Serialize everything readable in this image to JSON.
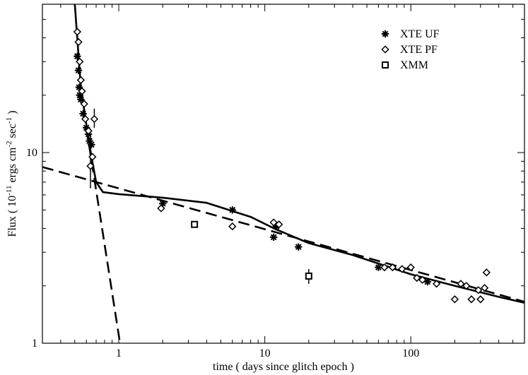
{
  "chart_data": {
    "type": "scatter",
    "xscale": "log",
    "yscale": "log",
    "xlim": [
      0.3,
      600
    ],
    "ylim": [
      1,
      60
    ],
    "xlabel": "time ( days since glitch epoch )",
    "ylabel_parts": {
      "prefix": "Flux ( 10",
      "exp1": "-11",
      "mid1": " ergs cm",
      "exp2": "-2",
      "mid2": " sec",
      "exp3": "-1",
      "suffix": " )"
    },
    "x_ticks": [
      {
        "value": 1,
        "label": "1"
      },
      {
        "value": 10,
        "label": "10"
      },
      {
        "value": 100,
        "label": "100"
      }
    ],
    "y_ticks": [
      {
        "value": 1,
        "label": "1"
      },
      {
        "value": 10,
        "label": "10"
      }
    ],
    "legend": {
      "placement": "top-right",
      "entries": [
        {
          "name": "XTE UF",
          "marker": "asterisk"
        },
        {
          "name": "XTE PF",
          "marker": "diamond"
        },
        {
          "name": "XMM",
          "marker": "square"
        }
      ]
    },
    "series": [
      {
        "name": "XTE UF",
        "marker": "asterisk",
        "points": [
          {
            "x": 0.52,
            "y": 32
          },
          {
            "x": 0.53,
            "y": 27
          },
          {
            "x": 0.535,
            "y": 22
          },
          {
            "x": 0.54,
            "y": 20
          },
          {
            "x": 0.55,
            "y": 19
          },
          {
            "x": 0.57,
            "y": 16
          },
          {
            "x": 0.6,
            "y": 13.5
          },
          {
            "x": 0.62,
            "y": 12.5
          },
          {
            "x": 0.63,
            "y": 11.5
          },
          {
            "x": 0.65,
            "y": 11
          },
          {
            "x": 2.0,
            "y": 5.4
          },
          {
            "x": 6.0,
            "y": 5.0
          },
          {
            "x": 11.5,
            "y": 3.6
          },
          {
            "x": 12.0,
            "y": 4.1
          },
          {
            "x": 17.0,
            "y": 3.2
          },
          {
            "x": 60.0,
            "y": 2.5
          },
          {
            "x": 130.0,
            "y": 2.1
          }
        ]
      },
      {
        "name": "XTE PF",
        "marker": "diamond",
        "points": [
          {
            "x": 0.52,
            "y": 43
          },
          {
            "x": 0.53,
            "y": 38
          },
          {
            "x": 0.54,
            "y": 30
          },
          {
            "x": 0.55,
            "y": 24
          },
          {
            "x": 0.56,
            "y": 21
          },
          {
            "x": 0.58,
            "y": 18
          },
          {
            "x": 0.59,
            "y": 15
          },
          {
            "x": 0.62,
            "y": 13
          },
          {
            "x": 0.64,
            "y": 8.5
          },
          {
            "x": 0.66,
            "y": 9.5
          },
          {
            "x": 0.68,
            "y": 15
          },
          {
            "x": 1.95,
            "y": 5.1
          },
          {
            "x": 6.0,
            "y": 4.1
          },
          {
            "x": 11.5,
            "y": 4.3
          },
          {
            "x": 12.5,
            "y": 4.2
          },
          {
            "x": 66.0,
            "y": 2.5
          },
          {
            "x": 75.0,
            "y": 2.5
          },
          {
            "x": 87.0,
            "y": 2.45
          },
          {
            "x": 100.0,
            "y": 2.5
          },
          {
            "x": 110.0,
            "y": 2.2
          },
          {
            "x": 120.0,
            "y": 2.15
          },
          {
            "x": 150.0,
            "y": 2.05
          },
          {
            "x": 200.0,
            "y": 1.7
          },
          {
            "x": 220.0,
            "y": 2.05
          },
          {
            "x": 240.0,
            "y": 2.0
          },
          {
            "x": 260.0,
            "y": 1.7
          },
          {
            "x": 290.0,
            "y": 1.9
          },
          {
            "x": 300.0,
            "y": 1.7
          },
          {
            "x": 320.0,
            "y": 1.95
          },
          {
            "x": 330.0,
            "y": 2.35
          }
        ]
      },
      {
        "name": "XMM",
        "marker": "square",
        "points": [
          {
            "x": 3.3,
            "y": 4.2
          },
          {
            "x": 20.0,
            "y": 2.25
          }
        ]
      }
    ],
    "error_bars": [
      {
        "x": 0.64,
        "y_low": 6.5,
        "y_high": 12.5
      },
      {
        "x": 0.68,
        "y_low": 13.5,
        "y_high": 17
      },
      {
        "x": 20.0,
        "y_low": 2.05,
        "y_high": 2.45
      }
    ],
    "curves": [
      {
        "name": "model",
        "style": "solid",
        "points": [
          [
            0.5,
            60
          ],
          [
            0.55,
            22
          ],
          [
            0.6,
            14
          ],
          [
            0.65,
            9.5
          ],
          [
            0.7,
            7
          ],
          [
            0.78,
            6.2
          ],
          [
            1.0,
            6.05
          ],
          [
            2.0,
            5.8
          ],
          [
            4.0,
            5.45
          ],
          [
            8.0,
            4.6
          ],
          [
            12.0,
            3.95
          ],
          [
            20.0,
            3.35
          ],
          [
            40.0,
            2.9
          ],
          [
            100.0,
            2.3
          ],
          [
            200.0,
            2.0
          ],
          [
            400.0,
            1.75
          ],
          [
            600.0,
            1.63
          ]
        ]
      },
      {
        "name": "power-law",
        "style": "dashed",
        "points": [
          [
            0.3,
            8.4
          ],
          [
            600.0,
            1.65
          ]
        ]
      },
      {
        "name": "steep-decay",
        "style": "dashed",
        "points": [
          [
            0.6,
            13.5
          ],
          [
            1.02,
            1.0
          ]
        ]
      }
    ]
  }
}
